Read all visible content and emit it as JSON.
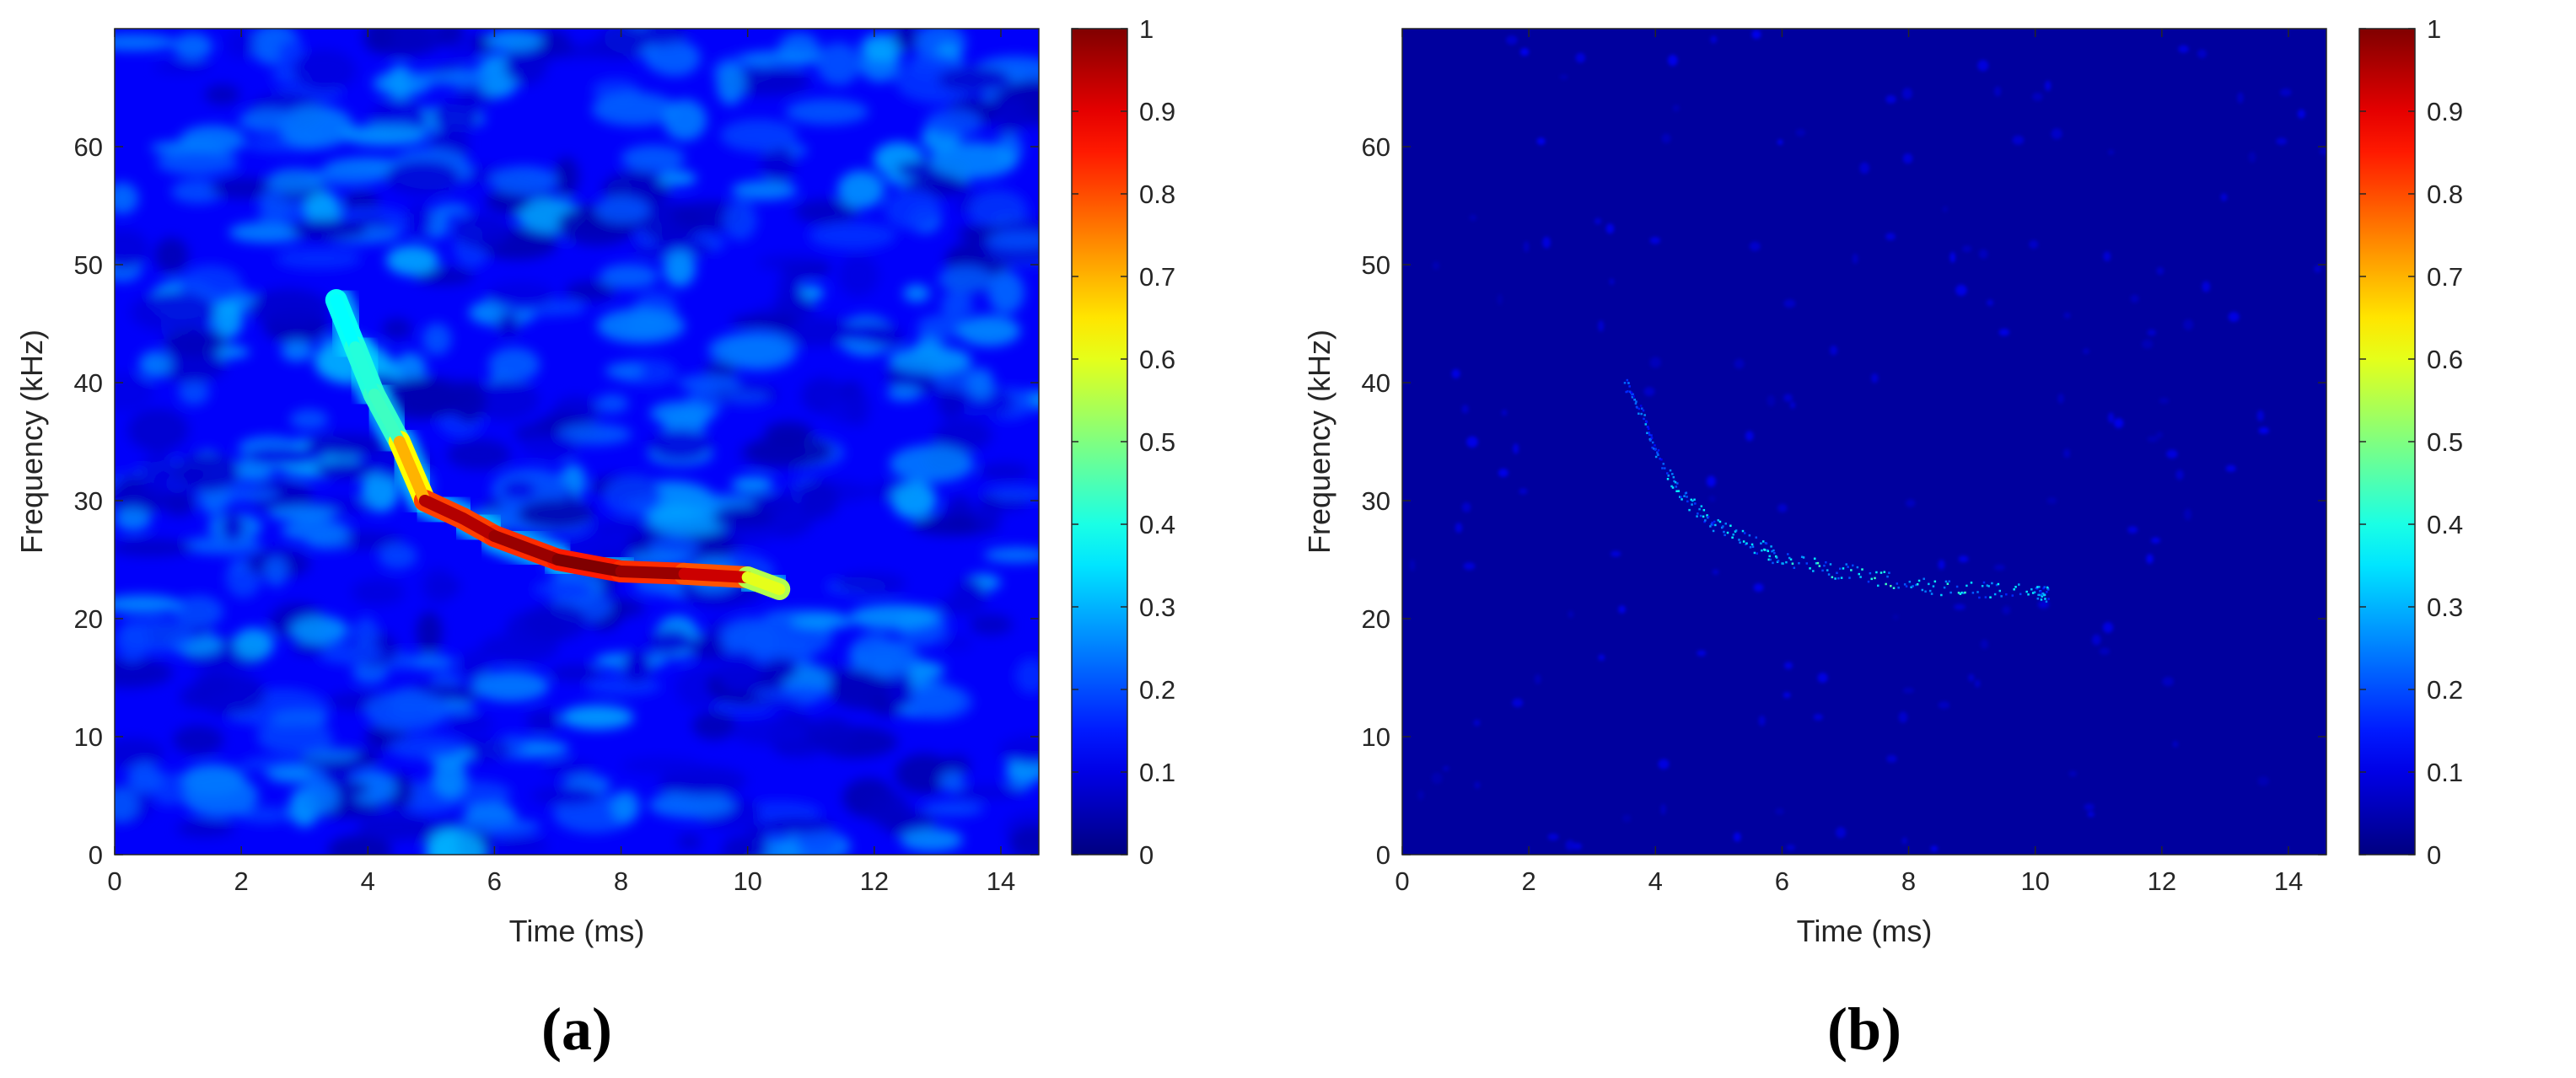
{
  "chart_data": [
    {
      "type": "heatmap",
      "panel_label": "(a)",
      "title": "",
      "xlabel": "Time (ms)",
      "ylabel": "Frequency (kHz)",
      "xlim": [
        0,
        14.6
      ],
      "ylim": [
        0,
        70
      ],
      "xticks": [
        "0",
        "2",
        "4",
        "6",
        "8",
        "10",
        "12",
        "14"
      ],
      "yticks": [
        "0",
        "10",
        "20",
        "30",
        "40",
        "50",
        "60"
      ],
      "colorbar": {
        "range": [
          0,
          1
        ],
        "ticks": [
          "0",
          "0.1",
          "0.2",
          "0.3",
          "0.4",
          "0.5",
          "0.6",
          "0.7",
          "0.8",
          "0.9",
          "1"
        ],
        "colormap": "jet"
      },
      "background_level": 0.12,
      "noise": "high",
      "ridge": {
        "t_ms": [
          3.5,
          3.8,
          4.1,
          4.5,
          4.9,
          5.5,
          6.0,
          7.0,
          8.0,
          9.0,
          10.0,
          10.5
        ],
        "f_khz": [
          47,
          43,
          39,
          35,
          30,
          28.5,
          27,
          25,
          24,
          23.8,
          23.5,
          22.5
        ],
        "intensity": [
          0.35,
          0.4,
          0.42,
          0.45,
          0.95,
          0.95,
          0.95,
          1.0,
          1.0,
          0.95,
          0.9,
          0.3
        ]
      }
    },
    {
      "type": "heatmap",
      "panel_label": "(b)",
      "title": "",
      "xlabel": "Time (ms)",
      "ylabel": "Frequency (kHz)",
      "xlim": [
        0,
        14.6
      ],
      "ylim": [
        0,
        70
      ],
      "xticks": [
        "0",
        "2",
        "4",
        "6",
        "8",
        "10",
        "12",
        "14"
      ],
      "yticks": [
        "0",
        "10",
        "20",
        "30",
        "40",
        "50",
        "60"
      ],
      "colorbar": {
        "range": [
          0,
          1
        ],
        "ticks": [
          "0",
          "0.1",
          "0.2",
          "0.3",
          "0.4",
          "0.5",
          "0.6",
          "0.7",
          "0.8",
          "0.9",
          "1"
        ],
        "colormap": "jet"
      },
      "background_level": 0.03,
      "noise": "low",
      "ridge": {
        "t_ms": [
          3.5,
          3.8,
          4.1,
          4.5,
          4.9,
          5.5,
          6.0,
          7.0,
          8.0,
          9.0,
          10.0,
          10.2
        ],
        "f_khz": [
          40,
          37,
          33,
          30,
          28,
          26.5,
          25,
          24,
          23,
          22.5,
          22.3,
          22
        ],
        "intensity": [
          0.2,
          0.25,
          0.3,
          0.3,
          0.3,
          0.32,
          0.35,
          0.35,
          0.33,
          0.3,
          0.28,
          0.2
        ]
      }
    }
  ]
}
